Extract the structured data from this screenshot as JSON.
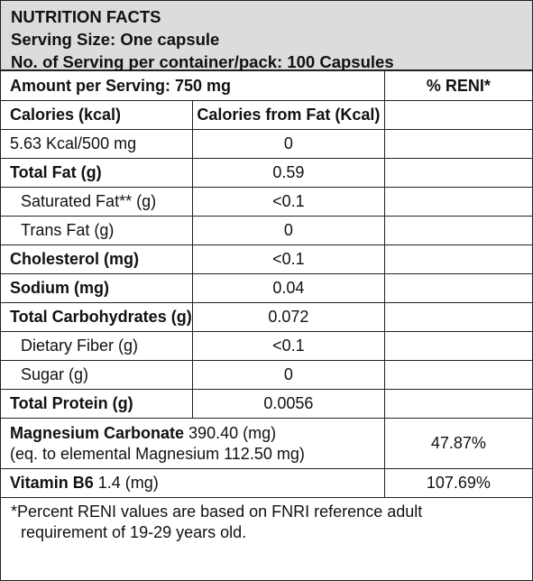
{
  "header": {
    "title": "NUTRITION FACTS",
    "serving_size": "Serving Size: One capsule",
    "servings": "No. of Serving per container/pack: 100 Capsules"
  },
  "table": {
    "amount_label": "Amount per Serving: 750 mg",
    "reni_label": "% RENI*",
    "calories_label": "Calories (kcal)",
    "calories_fat_label": "Calories from Fat (Kcal)",
    "rows": [
      {
        "label": "5.63 Kcal/500 mg",
        "value": "0",
        "reni": ""
      },
      {
        "label": "Total Fat (g)",
        "value": "0.59",
        "reni": ""
      },
      {
        "label": "Saturated Fat** (g)",
        "value": "<0.1",
        "reni": ""
      },
      {
        "label": "Trans Fat (g)",
        "value": "0",
        "reni": ""
      },
      {
        "label": "Cholesterol (mg)",
        "value": "<0.1",
        "reni": ""
      },
      {
        "label": "Sodium (mg)",
        "value": "0.04",
        "reni": ""
      },
      {
        "label": "Total Carbohydrates (g)",
        "value": "0.072",
        "reni": ""
      },
      {
        "label": "Dietary Fiber (g)",
        "value": "<0.1",
        "reni": ""
      },
      {
        "label": "Sugar (g)",
        "value": "0",
        "reni": ""
      },
      {
        "label": "Total Protein (g)",
        "value": "0.0056",
        "reni": ""
      }
    ],
    "magnesium": {
      "name": "Magnesium Carbonate",
      "amount": " 390.40 (mg)",
      "equivalent": "(eq. to elemental Magnesium 112.50 mg)",
      "reni": "47.87%"
    },
    "vitamin": {
      "name": "Vitamin B6",
      "amount": " 1.4 (mg)",
      "reni": "107.69%"
    }
  },
  "footnote": {
    "line1": "*Percent RENI values are based on FNRI reference adult",
    "line2": "requirement of 19-29 years old."
  }
}
